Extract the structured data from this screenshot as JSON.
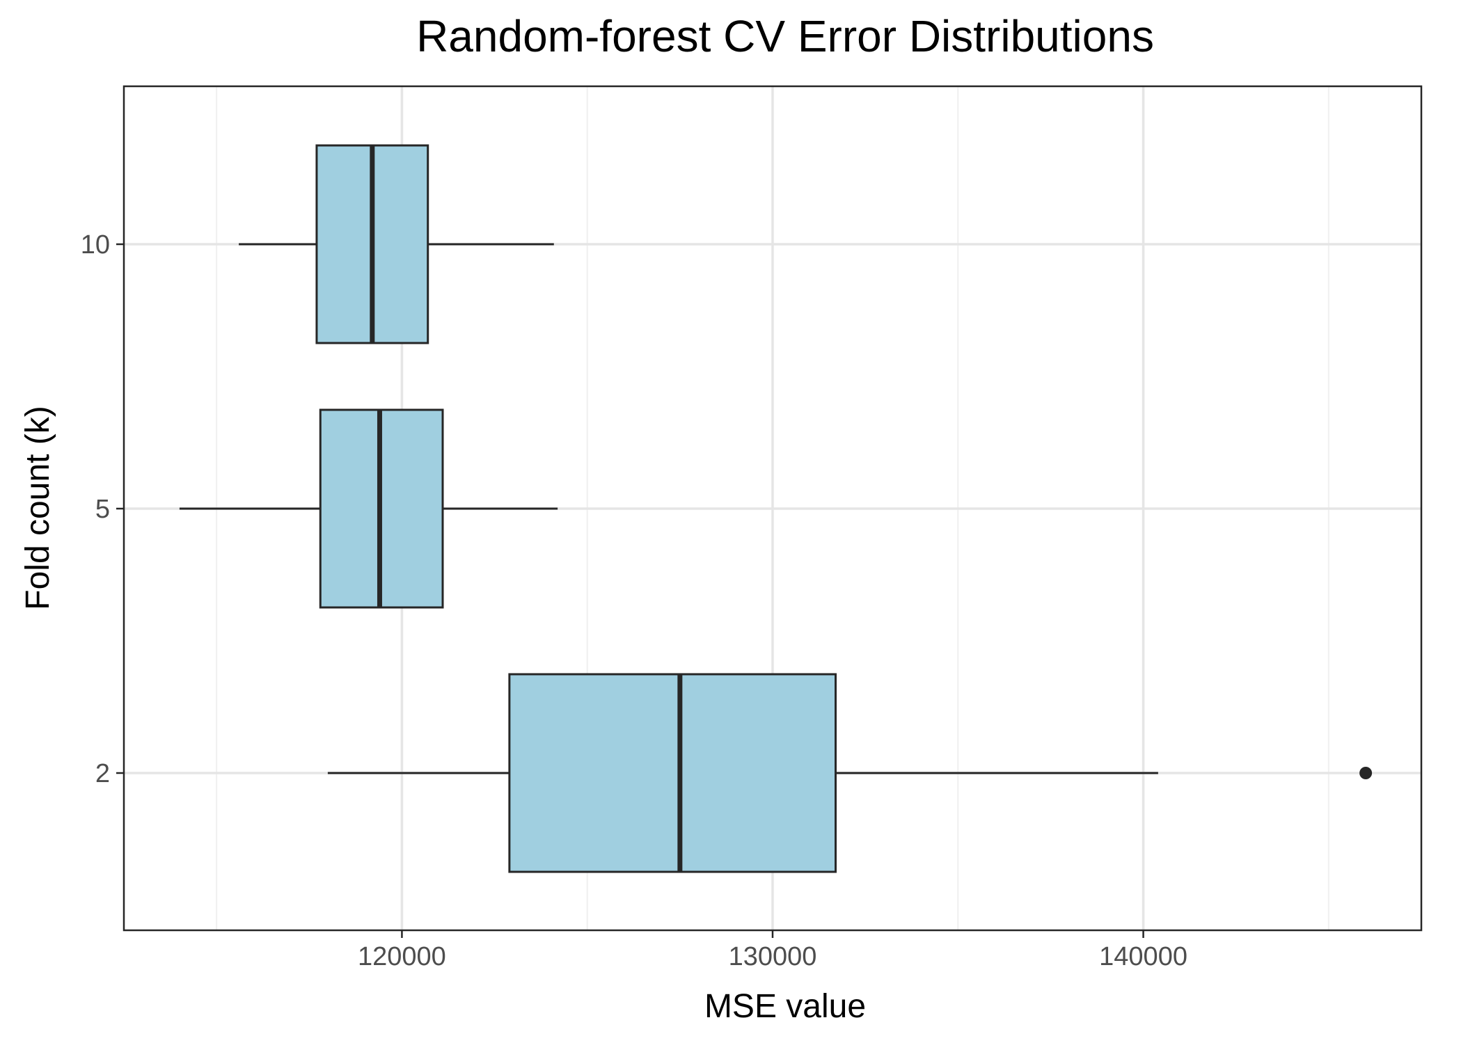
{
  "chart_data": {
    "type": "boxplot",
    "orientation": "horizontal",
    "title": "Random-forest CV Error Distributions",
    "xlabel": "MSE value",
    "ylabel": "Fold count (k)",
    "xlim": [
      112500,
      147500
    ],
    "x_ticks": [
      120000,
      130000,
      140000
    ],
    "x_tick_labels": [
      "120000",
      "130000",
      "140000"
    ],
    "x_minor_ticks": [
      115000,
      125000,
      135000,
      145000
    ],
    "categories": [
      "2",
      "5",
      "10"
    ],
    "boxes": [
      {
        "category": "2",
        "whisker_low": 118000,
        "q1": 122900,
        "median": 127500,
        "q3": 131700,
        "whisker_high": 140400,
        "outliers": [
          146000
        ]
      },
      {
        "category": "5",
        "whisker_low": 114000,
        "q1": 117800,
        "median": 119400,
        "q3": 121100,
        "whisker_high": 124200,
        "outliers": []
      },
      {
        "category": "10",
        "whisker_low": 115600,
        "q1": 117700,
        "median": 119200,
        "q3": 120700,
        "whisker_high": 124100,
        "outliers": []
      }
    ],
    "grid": true,
    "legend": "none",
    "colors": {
      "box_fill": "#a0cfe0",
      "box_stroke": "#262626",
      "grid_major": "#e5e5e5",
      "grid_minor": "#f0f0f0",
      "panel_border": "#262626",
      "tick_label": "#4d4d4d"
    }
  }
}
